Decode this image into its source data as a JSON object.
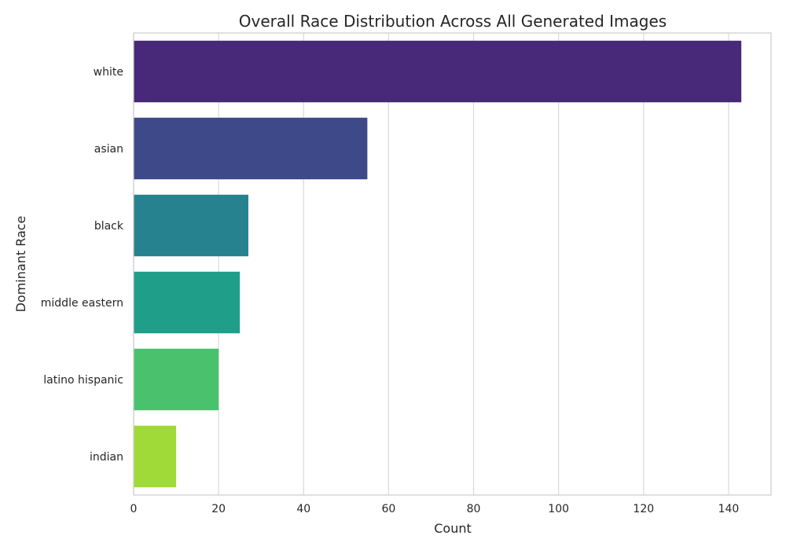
{
  "chart_data": {
    "type": "bar",
    "orientation": "horizontal",
    "title": "Overall Race Distribution Across All Generated Images",
    "xlabel": "Count",
    "ylabel": "Dominant Race",
    "categories": [
      "white",
      "asian",
      "black",
      "middle eastern",
      "latino hispanic",
      "indian"
    ],
    "values": [
      143,
      55,
      27,
      25,
      20,
      10
    ],
    "colors": [
      "#482878",
      "#3e4989",
      "#26828e",
      "#1f9e89",
      "#4ac16d",
      "#a0da39"
    ],
    "xlim": [
      0,
      150
    ],
    "xticks": [
      0,
      20,
      40,
      60,
      80,
      100,
      120,
      140
    ],
    "grid": true,
    "legend": "none"
  }
}
